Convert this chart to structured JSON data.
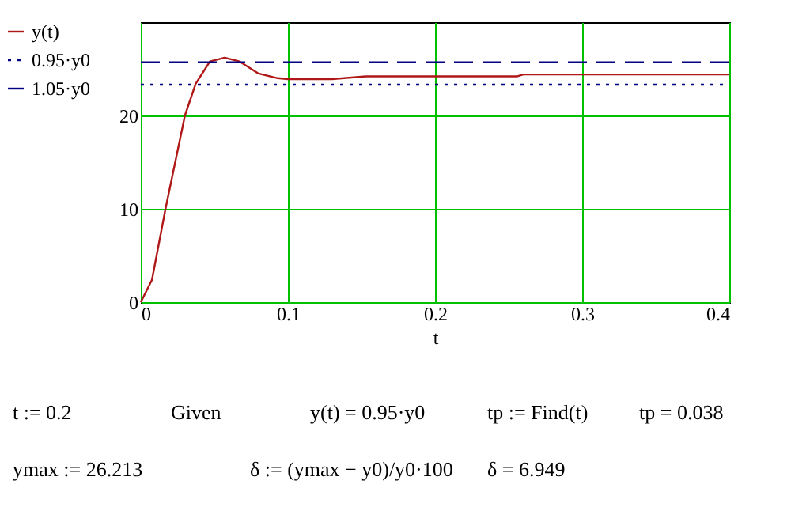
{
  "chart_data": {
    "type": "line",
    "xlabel": "t",
    "xlim": [
      0,
      0.4
    ],
    "xticks": [
      0,
      0.1,
      0.2,
      0.3,
      0.4
    ],
    "ylim": [
      0,
      30
    ],
    "yticks": [
      0,
      10,
      20
    ],
    "grid": true,
    "legend": "left",
    "marker": "none",
    "series": [
      {
        "name": "y(t)",
        "color": "#b01818",
        "line_style": "solid",
        "x": [
          0,
          0.0076,
          0.0168,
          0.03,
          0.0373,
          0.047,
          0.057,
          0.067,
          0.08,
          0.093,
          0.1,
          0.13,
          0.153,
          0.256,
          0.26,
          0.4
        ],
        "values": [
          0,
          2.4,
          10,
          20,
          23.4,
          25.8,
          26.2,
          25.8,
          24.5,
          24.0,
          23.9,
          23.9,
          24.2,
          24.2,
          24.4,
          24.4
        ]
      },
      {
        "name": "0.95·y0",
        "color": "#000080",
        "line_style": "dotted",
        "x": [
          0,
          0.4
        ],
        "values": [
          23.3,
          23.3
        ]
      },
      {
        "name": "1.05·y0",
        "color": "#000080",
        "line_style": "dashed",
        "x": [
          0,
          0.4
        ],
        "values": [
          25.7,
          25.7
        ]
      }
    ],
    "annotations": [
      "t := 0.2",
      "Given",
      "y(t) = 0.95·y0",
      "tp := Find(t)",
      "tp = 0.038",
      "ymax := 26.213",
      "δ := (ymax − y0)/y0·100",
      "δ = 6.949"
    ]
  }
}
